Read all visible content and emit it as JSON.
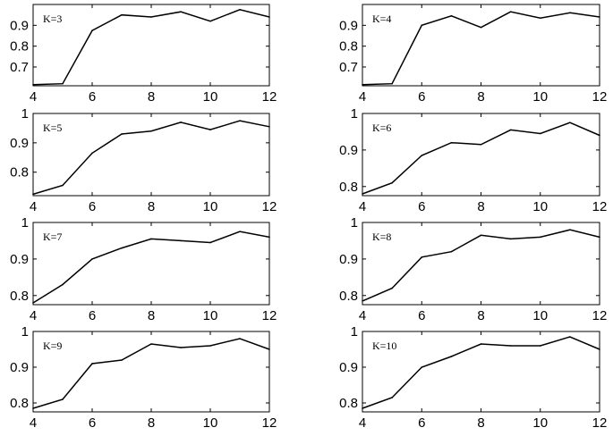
{
  "chart_data": [
    {
      "type": "line",
      "annotation": "K=3",
      "xticks": [
        "4",
        "6",
        "8",
        "10",
        "12"
      ],
      "yticks": [
        "0.9",
        "0.8",
        "0.7"
      ],
      "xlim": [
        4,
        12
      ],
      "ylim": [
        0.61,
        1.0
      ],
      "x": [
        4,
        5,
        6,
        7,
        8,
        9,
        10,
        11,
        12
      ],
      "y": [
        0.615,
        0.62,
        0.875,
        0.95,
        0.94,
        0.965,
        0.92,
        0.975,
        0.94
      ]
    },
    {
      "type": "line",
      "annotation": "K=4",
      "xticks": [
        "4",
        "6",
        "8",
        "10",
        "12"
      ],
      "yticks": [
        "0.9",
        "0.8",
        "0.7"
      ],
      "xlim": [
        4,
        12
      ],
      "ylim": [
        0.61,
        1.0
      ],
      "x": [
        4,
        5,
        6,
        7,
        8,
        9,
        10,
        11,
        12
      ],
      "y": [
        0.615,
        0.62,
        0.9,
        0.945,
        0.89,
        0.965,
        0.935,
        0.96,
        0.94
      ]
    },
    {
      "type": "line",
      "annotation": "K=5",
      "xticks": [
        "4",
        "6",
        "8",
        "10",
        "12"
      ],
      "yticks": [
        "1",
        "0.9",
        "0.8"
      ],
      "xlim": [
        4,
        12
      ],
      "ylim": [
        0.72,
        1.0
      ],
      "x": [
        4,
        5,
        6,
        7,
        8,
        9,
        10,
        11,
        12
      ],
      "y": [
        0.725,
        0.755,
        0.865,
        0.93,
        0.94,
        0.97,
        0.945,
        0.975,
        0.955
      ]
    },
    {
      "type": "line",
      "annotation": "K=6",
      "xticks": [
        "4",
        "6",
        "8",
        "10",
        "12"
      ],
      "yticks": [
        "1",
        "0.9",
        "0.8"
      ],
      "xlim": [
        4,
        12
      ],
      "ylim": [
        0.775,
        1.0
      ],
      "x": [
        4,
        5,
        6,
        7,
        8,
        9,
        10,
        11,
        12
      ],
      "y": [
        0.78,
        0.81,
        0.885,
        0.92,
        0.915,
        0.955,
        0.945,
        0.975,
        0.94
      ]
    },
    {
      "type": "line",
      "annotation": "K=7",
      "xticks": [
        "4",
        "6",
        "8",
        "10",
        "12"
      ],
      "yticks": [
        "1",
        "0.9",
        "0.8"
      ],
      "xlim": [
        4,
        12
      ],
      "ylim": [
        0.775,
        1.0
      ],
      "x": [
        4,
        5,
        6,
        7,
        8,
        9,
        10,
        11,
        12
      ],
      "y": [
        0.78,
        0.83,
        0.9,
        0.93,
        0.955,
        0.95,
        0.945,
        0.975,
        0.96
      ]
    },
    {
      "type": "line",
      "annotation": "K=8",
      "xticks": [
        "4",
        "6",
        "8",
        "10",
        "12"
      ],
      "yticks": [
        "1",
        "0.9",
        "0.8"
      ],
      "xlim": [
        4,
        12
      ],
      "ylim": [
        0.775,
        1.0
      ],
      "x": [
        4,
        5,
        6,
        7,
        8,
        9,
        10,
        11,
        12
      ],
      "y": [
        0.785,
        0.82,
        0.905,
        0.92,
        0.965,
        0.955,
        0.96,
        0.98,
        0.96
      ]
    },
    {
      "type": "line",
      "annotation": "K=9",
      "xticks": [
        "4",
        "6",
        "8",
        "10",
        "12"
      ],
      "yticks": [
        "1",
        "0.9",
        "0.8"
      ],
      "xlim": [
        4,
        12
      ],
      "ylim": [
        0.775,
        1.0
      ],
      "x": [
        4,
        5,
        6,
        7,
        8,
        9,
        10,
        11,
        12
      ],
      "y": [
        0.785,
        0.81,
        0.91,
        0.92,
        0.965,
        0.955,
        0.96,
        0.98,
        0.95
      ]
    },
    {
      "type": "line",
      "annotation": "K=10",
      "xticks": [
        "4",
        "6",
        "8",
        "10",
        "12"
      ],
      "yticks": [
        "1",
        "0.9",
        "0.8"
      ],
      "xlim": [
        4,
        12
      ],
      "ylim": [
        0.775,
        1.0
      ],
      "x": [
        4,
        5,
        6,
        7,
        8,
        9,
        10,
        11,
        12
      ],
      "y": [
        0.785,
        0.815,
        0.9,
        0.93,
        0.965,
        0.96,
        0.96,
        0.985,
        0.95
      ]
    }
  ]
}
